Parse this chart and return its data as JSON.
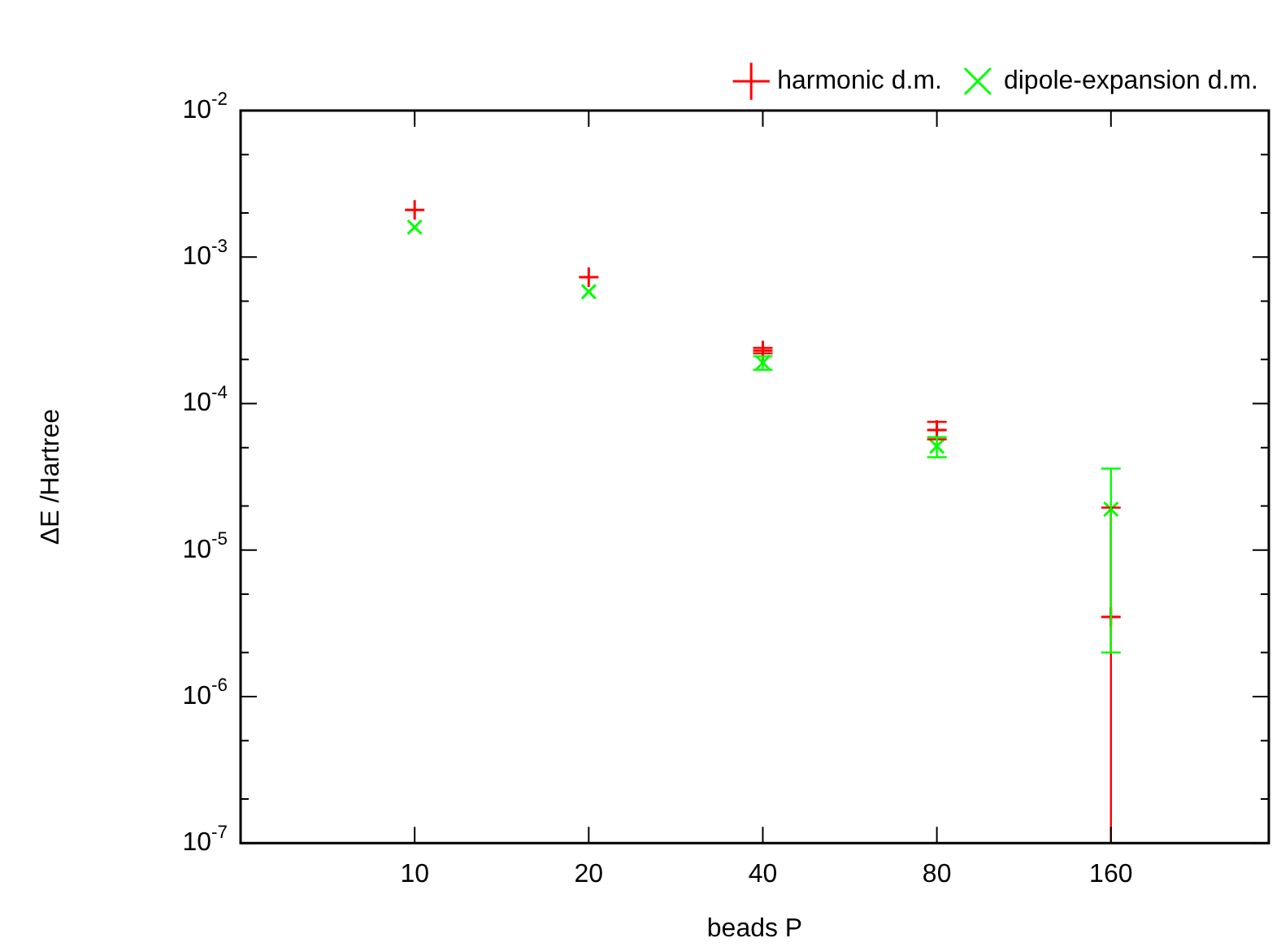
{
  "chart_data": {
    "type": "scatter",
    "xlabel": "beads P",
    "ylabel": "ΔE /Hartree",
    "log": "xy",
    "legend": "top right",
    "x": [
      10,
      20,
      40,
      80,
      160
    ],
    "xlim": [
      5,
      300
    ],
    "xticks": [
      10,
      20,
      40,
      80,
      160
    ],
    "ylim": [
      1e-07,
      0.01
    ],
    "yticks": [
      {
        "value": 1e-07,
        "label": "10$^{-7}$"
      },
      {
        "value": 2e-07,
        "label": null
      },
      {
        "value": 5e-07,
        "label": null
      },
      {
        "value": 1e-06,
        "label": "10$^{-6}$"
      },
      {
        "value": 2e-06,
        "label": null
      },
      {
        "value": 5e-06,
        "label": null
      },
      {
        "value": 1e-05,
        "label": "10$^{-5}$"
      },
      {
        "value": 2e-05,
        "label": null
      },
      {
        "value": 5e-05,
        "label": null
      },
      {
        "value": 0.0001,
        "label": "10$^{-4}$"
      },
      {
        "value": 0.0002,
        "label": null
      },
      {
        "value": 0.0005,
        "label": null
      },
      {
        "value": 0.001,
        "label": "10$^{-3}$"
      },
      {
        "value": 0.002,
        "label": null
      },
      {
        "value": 0.005,
        "label": null
      },
      {
        "value": 0.01,
        "label": "10$^{-2}$"
      }
    ],
    "series": [
      {
        "name": "harmonic d.m.",
        "color": "#ff0000",
        "marker": "cross",
        "values": [
          0.0021,
          0.00073,
          0.00023,
          6.6e-05,
          3.5e-06
        ],
        "errors": [
          null,
          null,
          1e-05,
          9e-06,
          [
            1e-07,
            1.95e-05
          ]
        ]
      },
      {
        "name": "dipole-expansion d.m.",
        "color": "#00ff00",
        "marker": "cross",
        "values": [
          0.0016,
          0.00058,
          0.00019,
          5.1e-05,
          1.9e-05
        ],
        "errors": [
          null,
          null,
          2e-05,
          8e-06,
          1.7e-05
        ]
      }
    ]
  }
}
